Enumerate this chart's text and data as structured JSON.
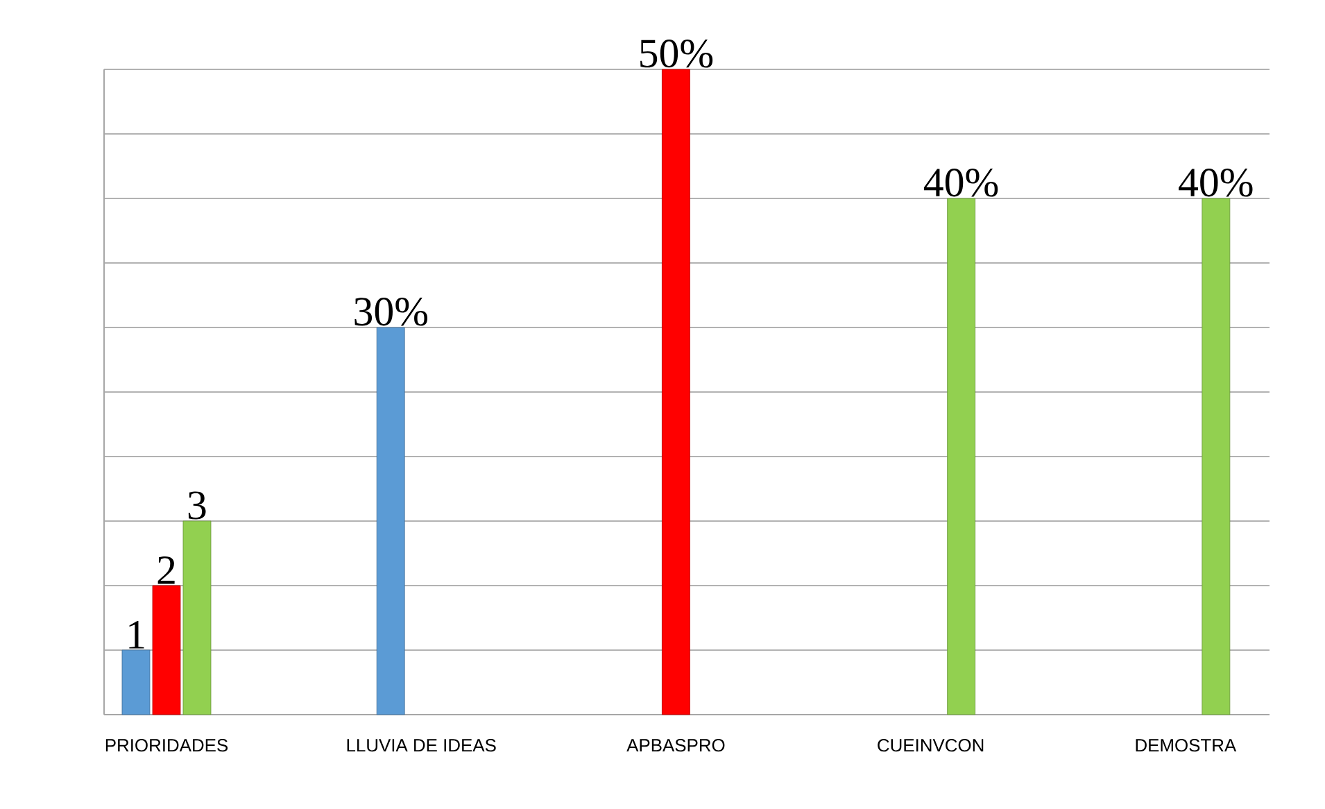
{
  "chart_data": {
    "type": "bar",
    "grid": "y",
    "tick_labels": "x",
    "categories": [
      "PRIORIDADES",
      "LLUVIA DE IDEAS",
      "APBASPRO",
      "CUEINVCON",
      "DEMOSTRA"
    ],
    "ylim": [
      0,
      50
    ],
    "yticks": [
      {
        "value": 0,
        "label": null
      },
      {
        "value": 5,
        "label": null
      },
      {
        "value": 10,
        "label": null
      },
      {
        "value": 15,
        "label": null
      },
      {
        "value": 20,
        "label": null
      },
      {
        "value": 25,
        "label": null
      },
      {
        "value": 30,
        "label": null
      },
      {
        "value": 35,
        "label": null
      },
      {
        "value": 40,
        "label": null
      },
      {
        "value": 45,
        "label": null
      },
      {
        "value": 50,
        "label": null
      }
    ],
    "series": [
      {
        "name": "1",
        "color": "#5b9bd5",
        "values": [
          5,
          30,
          null,
          null,
          null
        ],
        "value_labels": [
          null,
          "30%",
          null,
          null,
          null
        ]
      },
      {
        "name": "2",
        "color": "#ff0000",
        "values": [
          10,
          null,
          50,
          null,
          null
        ],
        "value_labels": [
          null,
          null,
          "50%",
          null,
          null
        ]
      },
      {
        "name": "3",
        "color": "#92d050",
        "values": [
          15,
          null,
          null,
          40,
          40
        ],
        "value_labels": [
          null,
          null,
          null,
          "40%",
          "40%"
        ]
      }
    ]
  }
}
